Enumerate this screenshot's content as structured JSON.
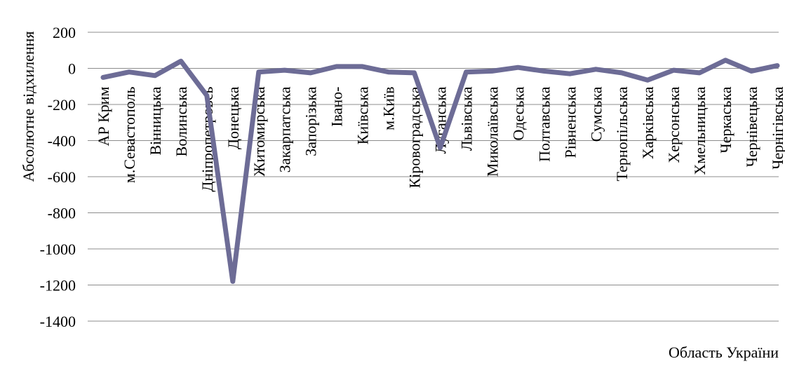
{
  "chart_data": {
    "type": "line",
    "title": "",
    "xlabel": "Область України",
    "ylabel": "Абсолютне відхилення",
    "ylim": [
      -1400,
      200
    ],
    "yticks": [
      200,
      0,
      -200,
      -400,
      -600,
      -800,
      -1000,
      -1200,
      -1400
    ],
    "grid": "horizontal",
    "colors": {
      "line": "#6d6c96",
      "grid": "#8c8c8c"
    },
    "categories": [
      "АР Крим",
      "м.Севастополь",
      "Вінницька",
      "Волинська",
      "Дніпропетровська",
      "Донецька",
      "Житомирська",
      "Закарпатська",
      "Запорізька",
      "Івано-Франківська",
      "Київська",
      "м.Київ",
      "Кіровоградська",
      "Луганська",
      "Львівська",
      "Миколаївська",
      "Одеська",
      "Полтавська",
      "Рівненська",
      "Сумська",
      "Тернопільська",
      "Харківська",
      "Херсонська",
      "Хмельницька",
      "Черкаська",
      "Чернівецька",
      "Чернігівська"
    ],
    "category_labels_visible": [
      "АР Крим",
      "м.Севастополь",
      "Вінницька",
      "Волинська",
      "Дніпропетровсь",
      "Донецька",
      "Житомирська",
      "Закарпатська",
      "Запорізька",
      "Івано-",
      "Київська",
      "м.Київ",
      "Кіровоградська",
      "Луганська",
      "Львівська",
      "Миколаївська",
      "Одеська",
      "Полтавська",
      "Рівненська",
      "Сумська",
      "Тернопільська",
      "Харківська",
      "Херсонська",
      "Хмельницька",
      "Черкаська",
      "Чернівецька",
      "Чернігівська"
    ],
    "series": [
      {
        "values": [
          -50,
          -20,
          -40,
          40,
          -150,
          -1180,
          -20,
          -10,
          -25,
          10,
          10,
          -20,
          -25,
          -440,
          -20,
          -15,
          5,
          -15,
          -30,
          -5,
          -25,
          -65,
          -10,
          -25,
          45,
          -15,
          15
        ]
      }
    ]
  }
}
